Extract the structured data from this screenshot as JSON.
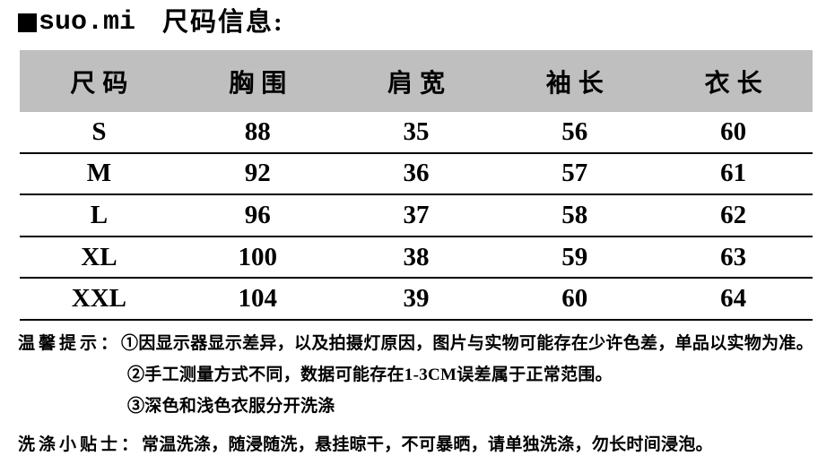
{
  "header": {
    "brand": "suo.mi",
    "title": "尺码信息:"
  },
  "table": {
    "headers": [
      "尺码",
      "胸围",
      "肩宽",
      "袖长",
      "衣长"
    ],
    "rows": [
      {
        "size": "S",
        "chest": "88",
        "shoulder": "35",
        "sleeve": "56",
        "length": "60"
      },
      {
        "size": "M",
        "chest": "92",
        "shoulder": "36",
        "sleeve": "57",
        "length": "61"
      },
      {
        "size": "L",
        "chest": "96",
        "shoulder": "37",
        "sleeve": "58",
        "length": "62"
      },
      {
        "size": "XL",
        "chest": "100",
        "shoulder": "38",
        "sleeve": "59",
        "length": "63"
      },
      {
        "size": "XXL",
        "chest": "104",
        "shoulder": "39",
        "sleeve": "60",
        "length": "64"
      }
    ]
  },
  "notes": {
    "warm_tips_label": "温馨提示：",
    "tips": [
      "①因显示器显示差异，以及拍摄灯原因，图片与实物可能存在少许色差，单品以实物为准。",
      "②手工测量方式不同，数据可能存在1-3CM误差属于正常范围。",
      "③深色和浅色衣服分开洗涤"
    ],
    "wash_label": "洗涤小贴士：",
    "wash_text": "常温洗涤，随浸随洗，悬挂晾干，不可暴晒，请单独洗涤，勿长时间浸泡。"
  },
  "colors": {
    "header_bg": "#bfbfbf",
    "text": "#000000",
    "row_line": "#000000"
  }
}
